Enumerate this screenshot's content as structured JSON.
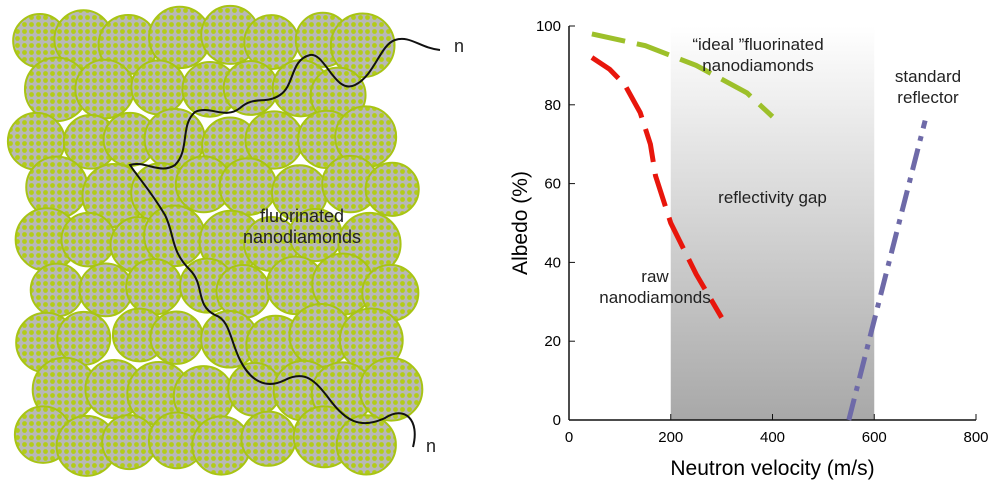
{
  "illustration": {
    "labels": [
      "fluorinated\nnanodiamonds",
      "n",
      "n"
    ]
  },
  "chart_data": {
    "type": "line",
    "xlabel": "Neutron velocity (m/s)",
    "ylabel": "Albedo (%)",
    "xlim": [
      0,
      800
    ],
    "xticks": [
      0,
      200,
      400,
      600,
      800
    ],
    "ylim": [
      0,
      100
    ],
    "yticks": [
      0,
      20,
      40,
      60,
      80,
      100
    ],
    "shaded_range": [
      200,
      600
    ],
    "shaded_label": "reflectivity gap",
    "series": [
      {
        "name": "raw\nnanodiamonds",
        "color": "#e8160c",
        "dash": "dashed",
        "x": [
          45,
          80,
          110,
          140,
          160,
          170,
          200,
          250,
          300
        ],
        "values": [
          92,
          89,
          85,
          78,
          70,
          62,
          50,
          37,
          26
        ]
      },
      {
        "name": "“ideal ”fluorinated\nnanodiamonds",
        "color": "#9dc02a",
        "dash": "dashed",
        "x": [
          45,
          150,
          250,
          350,
          400
        ],
        "values": [
          98,
          95,
          90,
          83,
          77
        ]
      },
      {
        "name": "standard\nreflector",
        "color": "#6e6aa8",
        "dash": "dashdot",
        "x": [
          550,
          700
        ],
        "values": [
          0,
          76
        ]
      }
    ]
  }
}
